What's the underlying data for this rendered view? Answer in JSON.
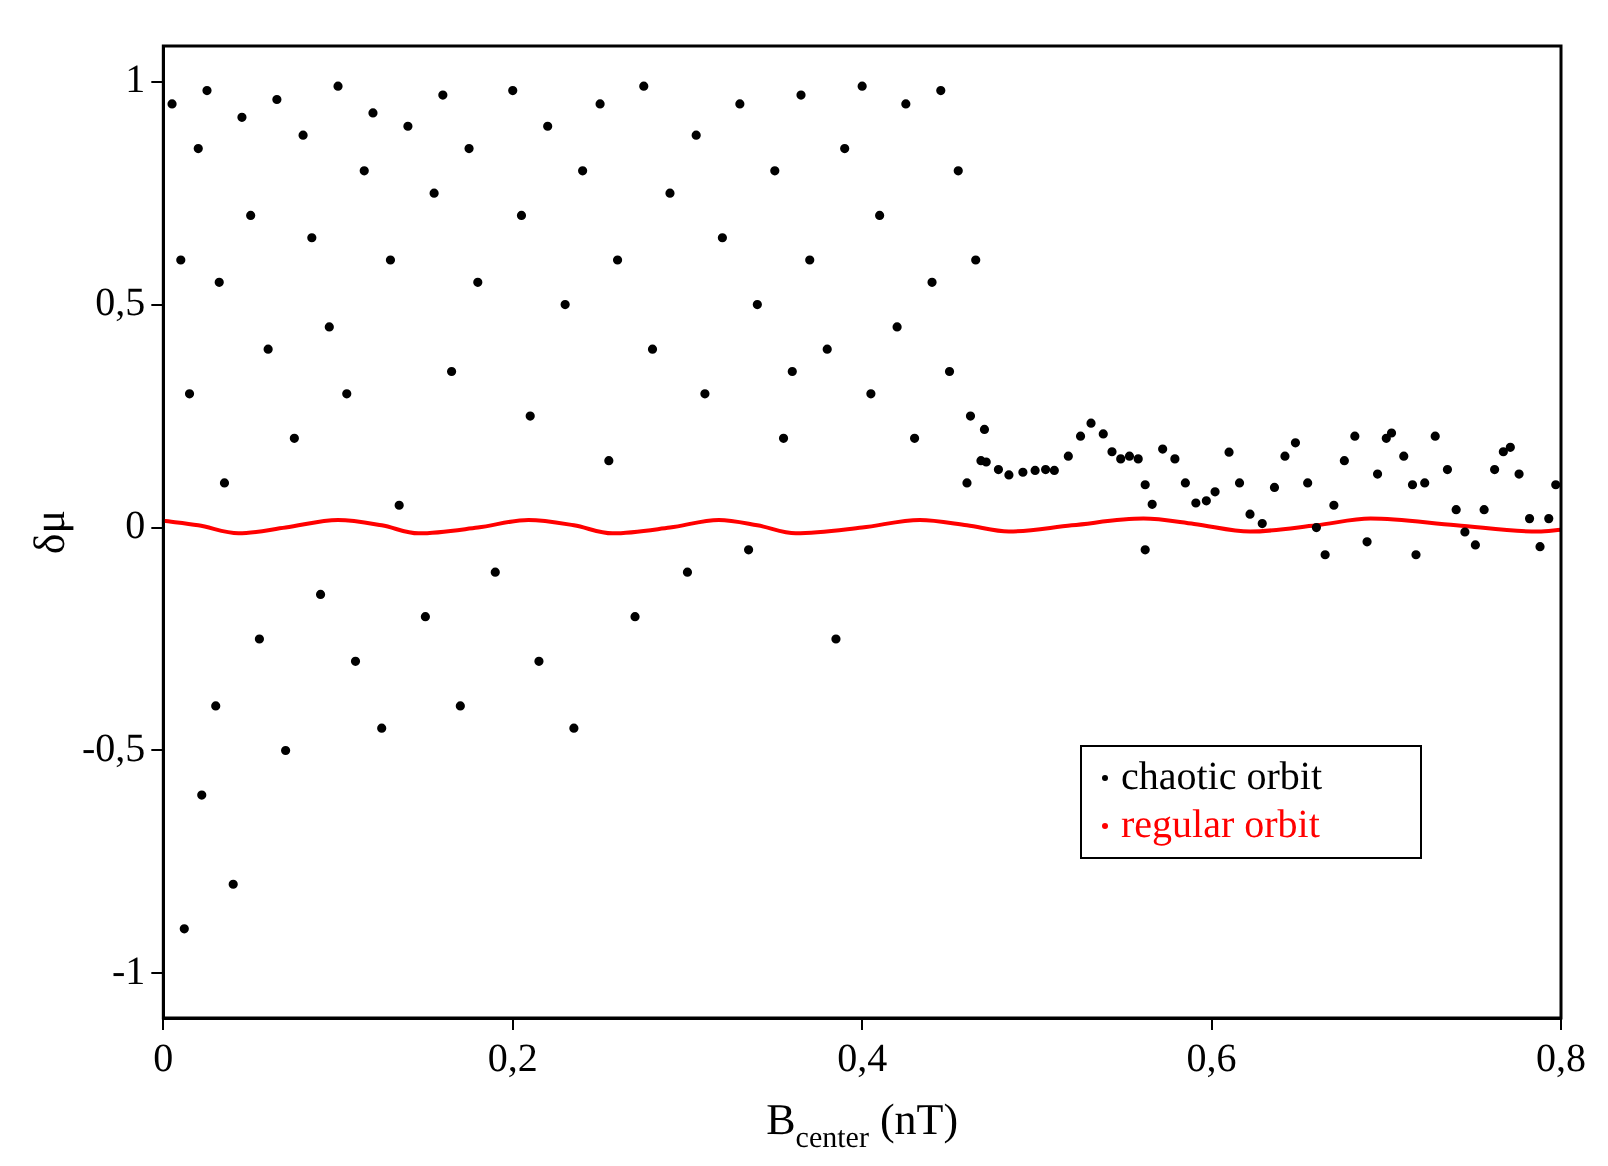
{
  "chart_data": {
    "type": "scatter",
    "xlabel": "B$_{center}$ (nT)",
    "ylabel": "δμ",
    "xlim": [
      0,
      0.8
    ],
    "ylim": [
      -1.1,
      1.08
    ],
    "xticks": [
      0,
      {
        "value": 0.2,
        "label": "0,2"
      },
      {
        "value": 0.4,
        "label": "0,4"
      },
      {
        "value": 0.6,
        "label": "0,6"
      },
      {
        "value": 0.8,
        "label": "0,8"
      }
    ],
    "yticks": [
      -1,
      {
        "value": -0.5,
        "label": "-0,5"
      },
      0,
      {
        "value": 0.5,
        "label": "0,5"
      },
      1
    ],
    "grid": false,
    "legend": "bottom right",
    "marker": "circle",
    "series": [
      {
        "name": "chaotic orbit",
        "type": "scatter",
        "color": "#000000",
        "x": [
          0.005,
          0.01,
          0.012,
          0.015,
          0.02,
          0.022,
          0.025,
          0.03,
          0.032,
          0.035,
          0.04,
          0.045,
          0.05,
          0.055,
          0.06,
          0.065,
          0.07,
          0.075,
          0.08,
          0.085,
          0.09,
          0.095,
          0.1,
          0.105,
          0.11,
          0.115,
          0.12,
          0.125,
          0.13,
          0.135,
          0.14,
          0.15,
          0.155,
          0.16,
          0.165,
          0.17,
          0.175,
          0.18,
          0.19,
          0.2,
          0.205,
          0.21,
          0.215,
          0.22,
          0.23,
          0.235,
          0.24,
          0.25,
          0.255,
          0.26,
          0.27,
          0.275,
          0.28,
          0.29,
          0.3,
          0.305,
          0.31,
          0.32,
          0.33,
          0.335,
          0.34,
          0.35,
          0.355,
          0.36,
          0.365,
          0.37,
          0.38,
          0.385,
          0.39,
          0.4,
          0.405,
          0.41,
          0.42,
          0.425,
          0.43,
          0.44,
          0.445,
          0.45,
          0.455,
          0.46,
          0.462,
          0.465,
          0.468,
          0.47,
          0.471,
          0.478,
          0.484,
          0.492,
          0.499,
          0.505,
          0.51,
          0.518,
          0.525,
          0.531,
          0.538,
          0.543,
          0.548,
          0.553,
          0.558,
          0.562,
          0.562,
          0.566,
          0.572,
          0.579,
          0.585,
          0.591,
          0.597,
          0.602,
          0.61,
          0.616,
          0.622,
          0.629,
          0.636,
          0.642,
          0.648,
          0.655,
          0.66,
          0.665,
          0.67,
          0.676,
          0.682,
          0.689,
          0.695,
          0.7,
          0.703,
          0.71,
          0.715,
          0.717,
          0.722,
          0.728,
          0.735,
          0.74,
          0.745,
          0.751,
          0.756,
          0.762,
          0.767,
          0.771,
          0.776,
          0.782,
          0.788,
          0.793,
          0.797
        ],
        "values": [
          0.95,
          0.6,
          -0.9,
          0.3,
          0.85,
          -0.6,
          0.98,
          -0.4,
          0.55,
          0.1,
          -0.8,
          0.92,
          0.7,
          -0.25,
          0.4,
          0.96,
          -0.5,
          0.2,
          0.88,
          0.65,
          -0.15,
          0.45,
          0.99,
          0.3,
          -0.3,
          0.8,
          0.93,
          -0.45,
          0.6,
          0.05,
          0.9,
          -0.2,
          0.75,
          0.97,
          0.35,
          -0.4,
          0.85,
          0.55,
          -0.1,
          0.98,
          0.7,
          0.25,
          -0.3,
          0.9,
          0.5,
          -0.45,
          0.8,
          0.95,
          0.15,
          0.6,
          -0.2,
          0.99,
          0.4,
          0.75,
          -0.1,
          0.88,
          0.3,
          0.65,
          0.95,
          -0.05,
          0.5,
          0.8,
          0.2,
          0.35,
          0.97,
          0.6,
          0.4,
          -0.25,
          0.85,
          0.99,
          0.3,
          0.7,
          0.45,
          0.95,
          0.2,
          0.55,
          0.98,
          0.35,
          0.8,
          0.1,
          0.25,
          0.6,
          0.15,
          0.22,
          0.147,
          0.13,
          0.118,
          0.124,
          0.128,
          0.13,
          0.128,
          0.16,
          0.205,
          0.234,
          0.21,
          0.17,
          0.154,
          0.16,
          0.154,
          0.096,
          -0.05,
          0.052,
          0.176,
          0.154,
          0.1,
          0.055,
          0.06,
          0.08,
          0.169,
          0.1,
          0.03,
          0.009,
          0.09,
          0.16,
          0.19,
          0.1,
          0.0,
          -0.061,
          0.05,
          0.15,
          0.205,
          -0.032,
          0.12,
          0.2,
          0.212,
          0.16,
          0.096,
          -0.061,
          0.1,
          0.205,
          0.13,
          0.04,
          -0.01,
          -0.039,
          0.04,
          0.13,
          0.17,
          0.18,
          0.12,
          0.02,
          -0.043,
          0.02,
          0.096
        ]
      },
      {
        "name": "regular orbit",
        "type": "line",
        "color": "#ff0000",
        "marker": "none",
        "x": [
          0,
          0.02,
          0.043,
          0.07,
          0.1,
          0.125,
          0.146,
          0.18,
          0.209,
          0.235,
          0.257,
          0.29,
          0.318,
          0.34,
          0.362,
          0.4,
          0.433,
          0.46,
          0.484,
          0.52,
          0.561,
          0.59,
          0.622,
          0.66,
          0.691,
          0.74,
          0.787,
          0.8
        ],
        "values": [
          0.015,
          0.005,
          -0.013,
          0.0,
          0.017,
          0.005,
          -0.013,
          0.0,
          0.017,
          0.005,
          -0.013,
          0.0,
          0.017,
          0.005,
          -0.013,
          0.0,
          0.017,
          0.005,
          -0.009,
          0.005,
          0.02,
          0.008,
          -0.009,
          0.005,
          0.02,
          0.005,
          -0.009,
          -0.005
        ]
      }
    ]
  }
}
